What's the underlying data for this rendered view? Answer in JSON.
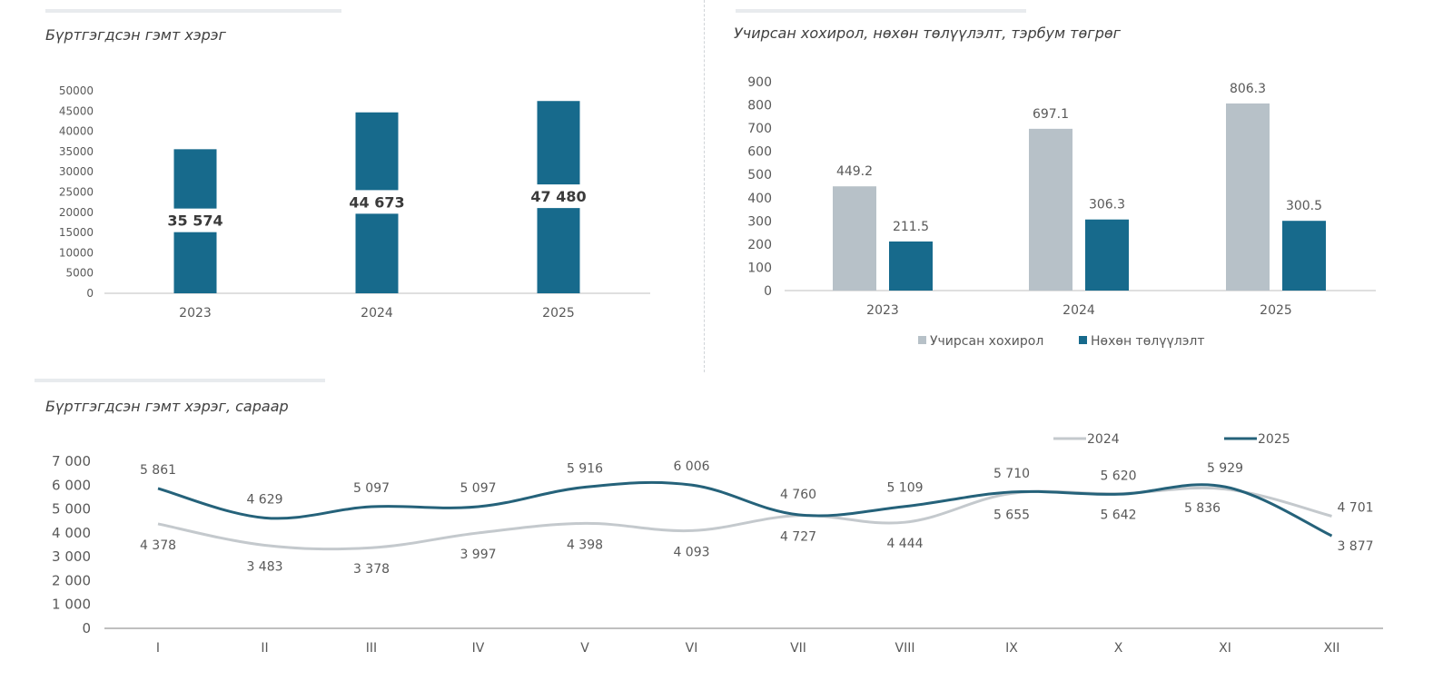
{
  "colors": {
    "teal": "#176a8c",
    "gray": "#b7c1c8",
    "axis": "#bfbfbf",
    "text": "#595959"
  },
  "panels": {
    "top_left_subtitle": "Бүртгэгдсэн гэмт хэрэг",
    "top_right_subtitle": "Учирсан хохирол, нөхөн төлүүлэлт, тэрбум төгрөг",
    "bottom_subtitle": "Бүртгэгдсэн гэмт хэрэг, сараар"
  },
  "chart_data": [
    {
      "type": "bar",
      "title": "Бүртгэгдсэн гэмт хэрэг",
      "categories": [
        "2023",
        "2024",
        "2025"
      ],
      "values": [
        35574,
        44673,
        47480
      ],
      "value_labels": [
        "35 574",
        "44 673",
        "47 480"
      ],
      "ylim": [
        0,
        50000
      ],
      "yticks": [
        "0",
        "5000",
        "10000",
        "15000",
        "20000",
        "25000",
        "30000",
        "35000",
        "40000",
        "45000",
        "50000"
      ],
      "xlabel": "",
      "ylabel": ""
    },
    {
      "type": "bar",
      "title": "Учирсан хохирол, нөхөн төлүүлэлт, тэрбум төгрөг",
      "categories": [
        "2023",
        "2024",
        "2025"
      ],
      "series": [
        {
          "name": "Учирсан хохирол",
          "values": [
            449.2,
            697.1,
            806.3
          ],
          "labels": [
            "449.2",
            "697.1",
            "806.3"
          ]
        },
        {
          "name": "Нөхөн төлүүлэлт",
          "values": [
            211.5,
            306.3,
            300.5
          ],
          "labels": [
            "211.5",
            "306.3",
            "300.5"
          ]
        }
      ],
      "ylim": [
        0,
        900
      ],
      "yticks": [
        "0",
        "100",
        "200",
        "300",
        "400",
        "500",
        "600",
        "700",
        "800",
        "900"
      ],
      "legend": "bottom",
      "xlabel": "",
      "ylabel": ""
    },
    {
      "type": "line",
      "title": "Бүртгэгдсэн гэмт хэрэг, сараар",
      "categories": [
        "I",
        "II",
        "III",
        "IV",
        "V",
        "VI",
        "VII",
        "VIII",
        "IX",
        "X",
        "XI",
        "XII"
      ],
      "series": [
        {
          "name": "2024",
          "values": [
            4378,
            3483,
            3378,
            3997,
            4398,
            4093,
            4727,
            4444,
            5655,
            5642,
            5836,
            4701
          ],
          "labels": [
            "4 378",
            "3 483",
            "3 378",
            "3 997",
            "4 398",
            "4 093",
            "4 727",
            "4 444",
            "5 655",
            "5 642",
            "5 836",
            "4 701"
          ]
        },
        {
          "name": "2025",
          "values": [
            5861,
            4629,
            5097,
            5097,
            5916,
            6006,
            4760,
            5109,
            5710,
            5620,
            5929,
            3877
          ],
          "labels": [
            "5 861",
            "4 629",
            "5 097",
            "5 097",
            "5 916",
            "6 006",
            "4 760",
            "5 109",
            "5 710",
            "5 620",
            "5 929",
            "3 877"
          ]
        }
      ],
      "ylim": [
        0,
        7000
      ],
      "yticks": [
        "0",
        "1 000",
        "2 000",
        "3 000",
        "4 000",
        "5 000",
        "6 000",
        "7 000"
      ],
      "legend": "top-right",
      "xlabel": "",
      "ylabel": ""
    }
  ]
}
